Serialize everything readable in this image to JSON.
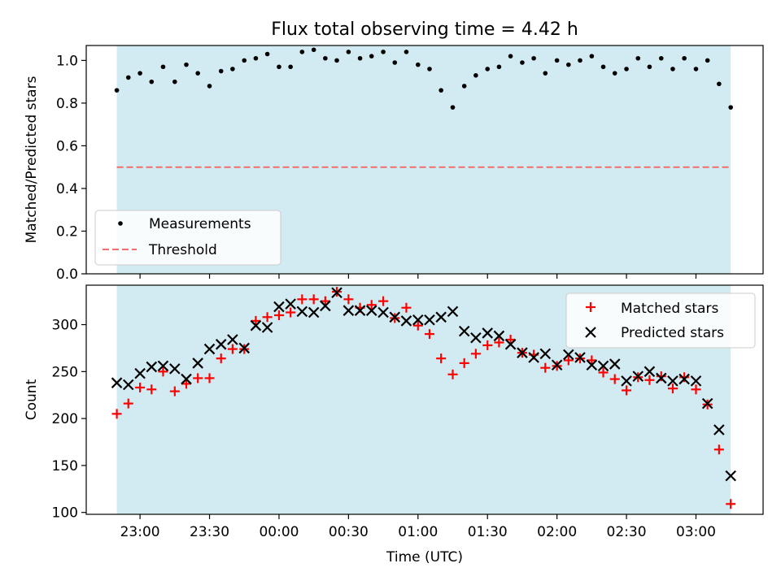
{
  "title": "Flux total observing time = 4.42 h",
  "chart_data": [
    {
      "type": "scatter",
      "ylabel": "Matched/Predicted stars",
      "ylim": [
        0,
        1.07
      ],
      "yticks": [
        "0.0",
        "0.2",
        "0.4",
        "0.6",
        "0.8",
        "1.0"
      ],
      "ytick_values": [
        0,
        0.2,
        0.4,
        0.6,
        0.8,
        1.0
      ],
      "series": [
        {
          "name": "Measurements",
          "marker": "dot",
          "color": "#000000",
          "x": [
            0.0,
            0.083,
            0.167,
            0.25,
            0.333,
            0.417,
            0.5,
            0.583,
            0.667,
            0.75,
            0.833,
            0.917,
            1.0,
            1.083,
            1.167,
            1.25,
            1.333,
            1.417,
            1.5,
            1.583,
            1.667,
            1.75,
            1.833,
            1.917,
            2.0,
            2.083,
            2.167,
            2.25,
            2.333,
            2.417,
            2.5,
            2.583,
            2.667,
            2.75,
            2.833,
            2.917,
            3.0,
            3.083,
            3.167,
            3.25,
            3.333,
            3.417,
            3.5,
            3.583,
            3.667,
            3.75,
            3.833,
            3.917,
            4.0,
            4.083,
            4.167,
            4.25,
            4.333,
            4.417
          ],
          "y": [
            0.86,
            0.92,
            0.94,
            0.9,
            0.97,
            0.9,
            0.98,
            0.94,
            0.88,
            0.95,
            0.96,
            1.0,
            1.01,
            1.03,
            0.97,
            0.97,
            1.04,
            1.05,
            1.01,
            1.0,
            1.04,
            1.01,
            1.02,
            1.04,
            0.99,
            1.04,
            0.98,
            0.96,
            0.86,
            0.78,
            0.88,
            0.93,
            0.96,
            0.97,
            1.02,
            0.99,
            1.01,
            0.94,
            1.0,
            0.98,
            1.0,
            1.02,
            0.97,
            0.94,
            0.96,
            1.01,
            0.97,
            1.01,
            0.96,
            1.01,
            0.96,
            1.0,
            0.89,
            0.78
          ]
        },
        {
          "name": "Threshold",
          "marker": "dashed-line",
          "color": "#f07070",
          "x": [
            0.0,
            4.417
          ],
          "y": [
            0.5,
            0.5
          ]
        }
      ],
      "legend": "lower-left",
      "shaded_span": [
        0.0,
        4.417
      ],
      "shade_color": "#add8e6"
    },
    {
      "type": "scatter",
      "xlabel": "Time (UTC)",
      "ylabel": "Count",
      "ylim": [
        98,
        342
      ],
      "yticks": [
        "100",
        "150",
        "200",
        "250",
        "300"
      ],
      "ytick_values": [
        100,
        150,
        200,
        250,
        300
      ],
      "xticks": [
        "23:00",
        "23:30",
        "00:00",
        "00:30",
        "01:00",
        "01:30",
        "02:00",
        "02:30",
        "03:00"
      ],
      "xtick_values": [
        0.167,
        0.667,
        1.167,
        1.667,
        2.167,
        2.667,
        3.167,
        3.667,
        4.167
      ],
      "series": [
        {
          "name": "Matched stars",
          "marker": "plus",
          "color": "#ff0000",
          "x": [
            0.0,
            0.083,
            0.167,
            0.25,
            0.333,
            0.417,
            0.5,
            0.583,
            0.667,
            0.75,
            0.833,
            0.917,
            1.0,
            1.083,
            1.167,
            1.25,
            1.333,
            1.417,
            1.5,
            1.583,
            1.667,
            1.75,
            1.833,
            1.917,
            2.0,
            2.083,
            2.167,
            2.25,
            2.333,
            2.417,
            2.5,
            2.583,
            2.667,
            2.75,
            2.833,
            2.917,
            3.0,
            3.083,
            3.167,
            3.25,
            3.333,
            3.417,
            3.5,
            3.583,
            3.667,
            3.75,
            3.833,
            3.917,
            4.0,
            4.083,
            4.167,
            4.25,
            4.333,
            4.417
          ],
          "y": [
            205,
            216,
            233,
            231,
            250,
            229,
            237,
            243,
            243,
            264,
            274,
            274,
            304,
            308,
            310,
            313,
            327,
            327,
            325,
            335,
            327,
            318,
            321,
            325,
            307,
            318,
            299,
            290,
            264,
            247,
            259,
            269,
            278,
            281,
            284,
            270,
            268,
            254,
            256,
            262,
            264,
            262,
            249,
            242,
            230,
            244,
            241,
            245,
            232,
            244,
            231,
            215,
            167,
            109
          ]
        },
        {
          "name": "Predicted stars",
          "marker": "x",
          "color": "#000000",
          "x": [
            0.0,
            0.083,
            0.167,
            0.25,
            0.333,
            0.417,
            0.5,
            0.583,
            0.667,
            0.75,
            0.833,
            0.917,
            1.0,
            1.083,
            1.167,
            1.25,
            1.333,
            1.417,
            1.5,
            1.583,
            1.667,
            1.75,
            1.833,
            1.917,
            2.0,
            2.083,
            2.167,
            2.25,
            2.333,
            2.417,
            2.5,
            2.583,
            2.667,
            2.75,
            2.833,
            2.917,
            3.0,
            3.083,
            3.167,
            3.25,
            3.333,
            3.417,
            3.5,
            3.583,
            3.667,
            3.75,
            3.833,
            3.917,
            4.0,
            4.083,
            4.167,
            4.25,
            4.333,
            4.417
          ],
          "y": [
            238,
            236,
            248,
            255,
            256,
            253,
            242,
            259,
            274,
            279,
            284,
            275,
            299,
            297,
            319,
            322,
            314,
            313,
            320,
            334,
            315,
            315,
            315,
            313,
            308,
            304,
            305,
            305,
            308,
            314,
            293,
            286,
            291,
            288,
            279,
            270,
            265,
            269,
            257,
            268,
            265,
            257,
            256,
            258,
            240,
            245,
            250,
            243,
            240,
            242,
            240,
            216,
            188,
            139
          ]
        }
      ],
      "legend": "upper-right",
      "shaded_span": [
        0.0,
        4.417
      ],
      "shade_color": "#add8e6"
    }
  ]
}
